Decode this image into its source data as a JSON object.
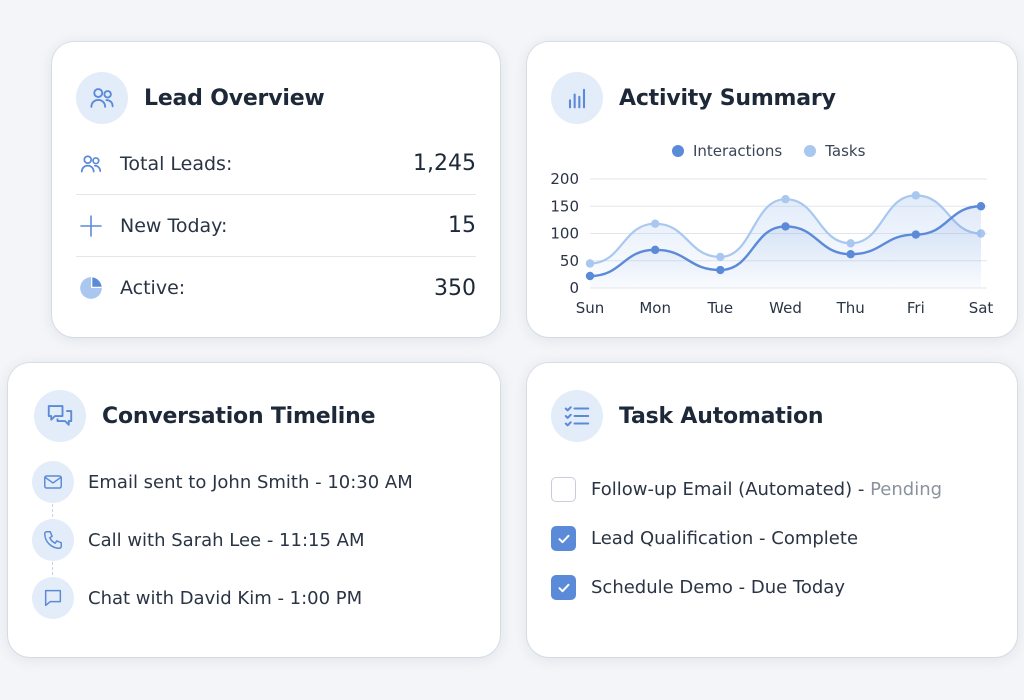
{
  "colors": {
    "accent": "#5b8ad8",
    "interactions": "#5b8ad8",
    "tasks": "#a9c7ef",
    "icon_bg": "#e3ecf9"
  },
  "lead_overview": {
    "title": "Lead Overview",
    "icon": "users-icon",
    "stats": [
      {
        "label": "Total Leads:",
        "value": "1,245",
        "icon": "users-icon"
      },
      {
        "label": "New Today:",
        "value": "15",
        "icon": "plus-icon"
      },
      {
        "label": "Active:",
        "value": "350",
        "icon": "pie-chart-icon"
      }
    ]
  },
  "activity_summary": {
    "title": "Activity Summary",
    "icon": "bar-chart-icon",
    "legend": [
      "Interactions",
      "Tasks"
    ]
  },
  "chart_data": {
    "type": "line",
    "categories": [
      "Sun",
      "Mon",
      "Tue",
      "Wed",
      "Thu",
      "Fri",
      "Sat"
    ],
    "series": [
      {
        "name": "Interactions",
        "values": [
          22,
          70,
          33,
          113,
          62,
          98,
          150
        ]
      },
      {
        "name": "Tasks",
        "values": [
          45,
          118,
          57,
          163,
          82,
          170,
          100
        ]
      }
    ],
    "yticks": [
      0,
      50,
      100,
      150,
      200
    ],
    "ylim": [
      0,
      200
    ],
    "smooth": true,
    "area_fill": true,
    "grid": true,
    "legend_position": "top-center"
  },
  "conversation_timeline": {
    "title": "Conversation Timeline",
    "icon": "chat-bubbles-icon",
    "items": [
      {
        "text": "Email sent to John Smith - 10:30 AM",
        "icon": "mail-icon"
      },
      {
        "text": "Call with Sarah Lee - 11:15 AM",
        "icon": "phone-icon"
      },
      {
        "text": "Chat with David Kim - 1:00 PM",
        "icon": "chat-icon"
      }
    ]
  },
  "task_automation": {
    "title": "Task Automation",
    "icon": "checklist-icon",
    "tasks": [
      {
        "name": "Follow-up Email (Automated) - ",
        "status": "Pending",
        "checked": false
      },
      {
        "name": "Lead Qualification - ",
        "status": "Complete",
        "checked": true
      },
      {
        "name": "Schedule Demo - ",
        "status": "Due Today",
        "checked": true
      }
    ]
  }
}
